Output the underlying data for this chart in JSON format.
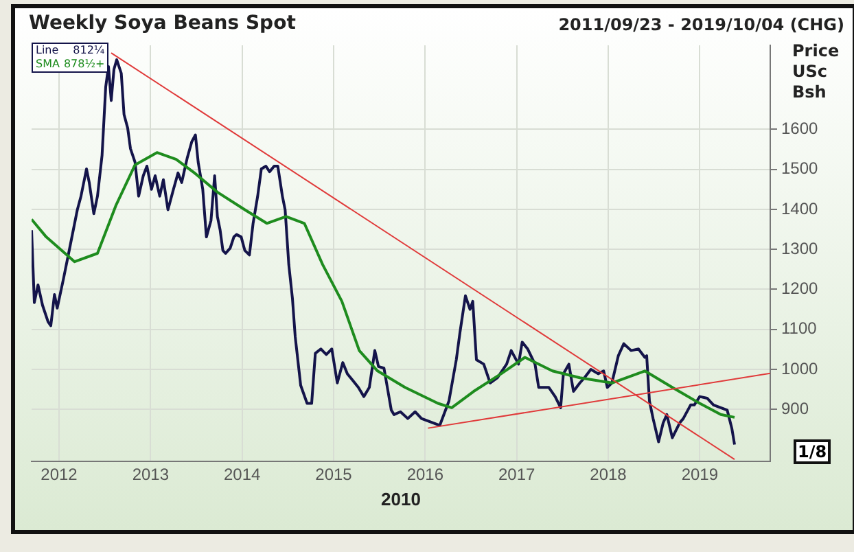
{
  "chart_data": {
    "type": "line",
    "title": "Weekly Soya Beans Spot",
    "subtitle": "2011/09/23 - 2019/10/04 (CHG)",
    "xlabel": "2010",
    "ylabel": "Price USc Bsh",
    "annotations": [
      "812¼",
      "878½+",
      "1/8"
    ],
    "xlim": [
      2011.7,
      2019.77
    ],
    "xticks": [
      2012,
      2013,
      2014,
      2015,
      2016,
      2017,
      2018,
      2019
    ],
    "ylim": [
      770,
      1810
    ],
    "yticks": [
      900,
      1000,
      1100,
      1200,
      1300,
      1400,
      1500,
      1600
    ],
    "grid": true,
    "legend": "top left",
    "marker": "none",
    "line_style": "solid",
    "series": [
      {
        "name": "Line",
        "color": "#14144a",
        "x": [
          2011.7,
          2011.73,
          2011.77,
          2011.82,
          2011.88,
          2011.91,
          2011.95,
          2011.98,
          2012.05,
          2012.11,
          2012.2,
          2012.24,
          2012.3,
          2012.33,
          2012.38,
          2012.42,
          2012.47,
          2012.51,
          2012.54,
          2012.57,
          2012.6,
          2012.63,
          2012.68,
          2012.71,
          2012.75,
          2012.78,
          2012.83,
          2012.87,
          2012.92,
          2012.96,
          2013.01,
          2013.05,
          2013.1,
          2013.14,
          2013.19,
          2013.25,
          2013.3,
          2013.34,
          2013.4,
          2013.45,
          2013.49,
          2013.52,
          2013.57,
          2013.61,
          2013.66,
          2013.7,
          2013.73,
          2013.76,
          2013.79,
          2013.82,
          2013.87,
          2013.91,
          2013.94,
          2013.99,
          2014.03,
          2014.08,
          2014.12,
          2014.17,
          2014.21,
          2014.26,
          2014.3,
          2014.35,
          2014.39,
          2014.44,
          2014.47,
          2014.51,
          2014.55,
          2014.58,
          2014.64,
          2014.71,
          2014.76,
          2014.8,
          2014.86,
          2014.92,
          2014.98,
          2015.04,
          2015.1,
          2015.15,
          2015.21,
          2015.27,
          2015.33,
          2015.39,
          2015.45,
          2015.49,
          2015.55,
          2015.63,
          2015.66,
          2015.73,
          2015.81,
          2015.89,
          2015.96,
          2016.04,
          2016.16,
          2016.26,
          2016.34,
          2016.38,
          2016.44,
          2016.49,
          2016.52,
          2016.56,
          2016.64,
          2016.71,
          2016.79,
          2016.89,
          2016.94,
          2017.02,
          2017.06,
          2017.12,
          2017.2,
          2017.24,
          2017.35,
          2017.42,
          2017.48,
          2017.51,
          2017.57,
          2017.62,
          2017.69,
          2017.74,
          2017.81,
          2017.89,
          2017.95,
          2017.99,
          2018.04,
          2018.11,
          2018.17,
          2018.25,
          2018.33,
          2018.4,
          2018.42,
          2018.45,
          2018.49,
          2018.55,
          2018.6,
          2018.64,
          2018.7,
          2018.78,
          2018.82,
          2018.9,
          2018.94,
          2019.0,
          2019.08,
          2019.15,
          2019.23,
          2019.3,
          2019.35,
          2019.38
        ],
        "values": [
          1348,
          1167,
          1211,
          1160,
          1119,
          1109,
          1187,
          1153,
          1228,
          1296,
          1399,
          1433,
          1501,
          1467,
          1389,
          1433,
          1535,
          1706,
          1757,
          1672,
          1750,
          1774,
          1740,
          1637,
          1603,
          1552,
          1518,
          1433,
          1484,
          1508,
          1450,
          1484,
          1433,
          1474,
          1399,
          1450,
          1491,
          1467,
          1528,
          1569,
          1586,
          1518,
          1450,
          1331,
          1372,
          1484,
          1382,
          1348,
          1297,
          1290,
          1303,
          1331,
          1337,
          1331,
          1297,
          1286,
          1365,
          1433,
          1501,
          1508,
          1494,
          1508,
          1508,
          1433,
          1399,
          1262,
          1177,
          1082,
          960,
          915,
          915,
          1040,
          1051,
          1037,
          1051,
          966,
          1017,
          989,
          972,
          955,
          932,
          955,
          1047,
          1007,
          1003,
          898,
          887,
          894,
          877,
          894,
          877,
          870,
          860,
          921,
          1024,
          1092,
          1184,
          1150,
          1170,
          1024,
          1013,
          966,
          979,
          1013,
          1047,
          1013,
          1068,
          1051,
          1013,
          955,
          955,
          932,
          904,
          989,
          1013,
          945,
          966,
          979,
          1000,
          989,
          996,
          955,
          966,
          1034,
          1064,
          1047,
          1051,
          1030,
          1034,
          921,
          877,
          819,
          866,
          887,
          829,
          866,
          877,
          911,
          911,
          932,
          928,
          911,
          904,
          898,
          853,
          812
        ]
      },
      {
        "name": "SMA",
        "color": "#1e8c1e",
        "x": [
          2011.7,
          2011.86,
          2012.17,
          2012.42,
          2012.62,
          2012.83,
          2013.07,
          2013.28,
          2013.48,
          2013.73,
          2014.03,
          2014.27,
          2014.48,
          2014.68,
          2014.88,
          2015.09,
          2015.28,
          2015.48,
          2015.78,
          2016.14,
          2016.29,
          2016.53,
          2016.83,
          2017.09,
          2017.39,
          2017.69,
          2018.04,
          2018.4,
          2018.7,
          2019.0,
          2019.23,
          2019.38
        ],
        "values": [
          1375,
          1331,
          1269,
          1290,
          1409,
          1511,
          1542,
          1525,
          1491,
          1443,
          1399,
          1365,
          1382,
          1365,
          1262,
          1170,
          1047,
          996,
          955,
          915,
          904,
          945,
          989,
          1030,
          996,
          979,
          966,
          996,
          955,
          915,
          887,
          880
        ]
      },
      {
        "type": "line",
        "color": "#e03a3a",
        "x": [
          2012.57,
          2019.38
        ],
        "values": [
          1791,
          775
        ]
      },
      {
        "type": "line",
        "color": "#e03a3a",
        "x": [
          2016.03,
          2019.77
        ],
        "values": [
          853,
          990
        ]
      }
    ]
  }
}
